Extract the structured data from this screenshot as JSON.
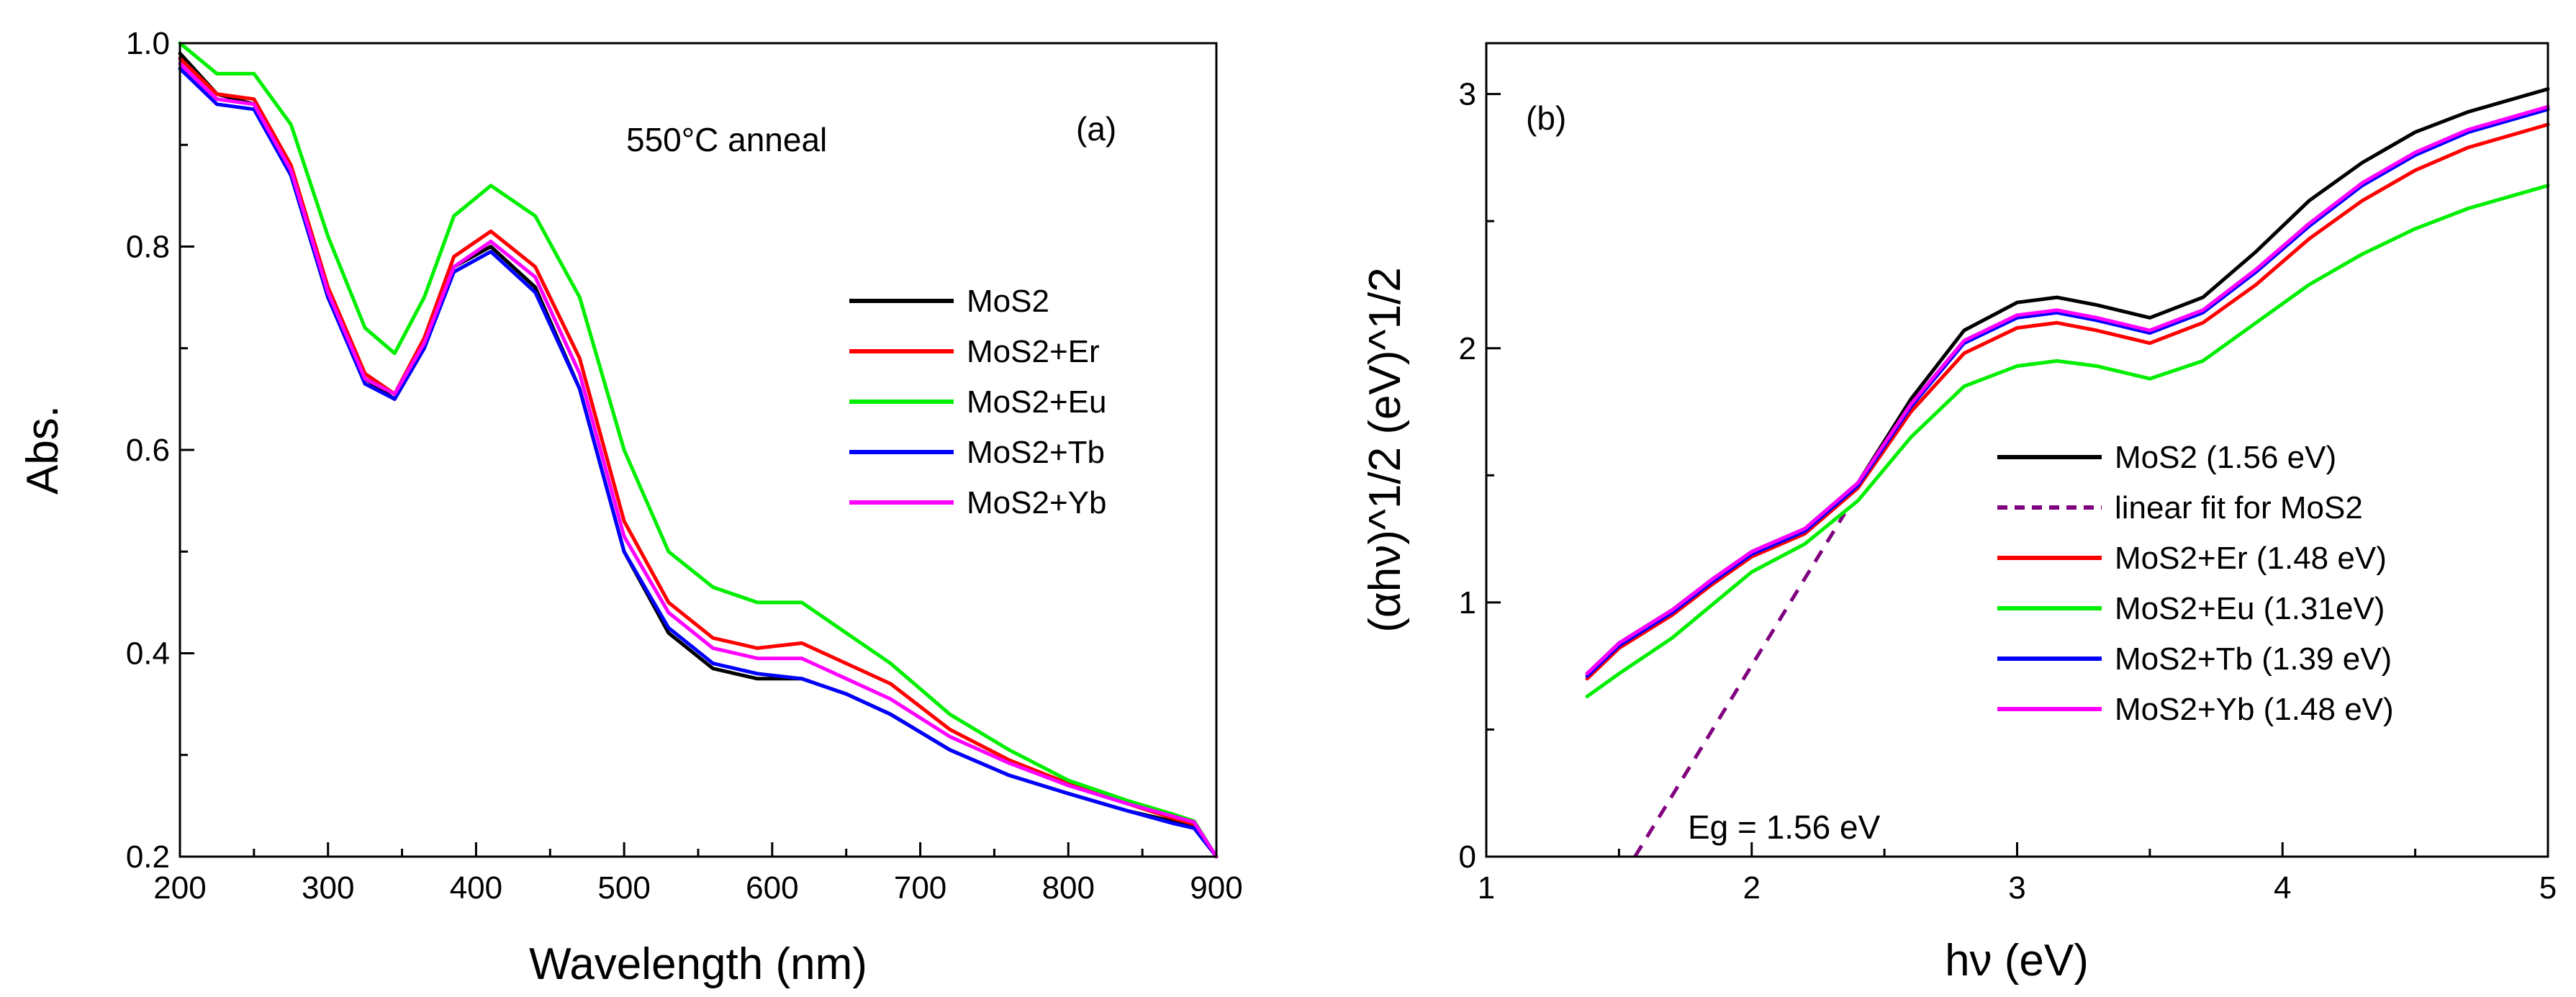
{
  "chart_data": [
    {
      "type": "line",
      "panel_label": "(a)",
      "annotation": "550°C anneal",
      "xlabel": "Wavelength (nm)",
      "ylabel": "Abs.",
      "xlim": [
        200,
        900
      ],
      "ylim": [
        0.2,
        1.0
      ],
      "xticks": [
        200,
        300,
        400,
        500,
        600,
        700,
        800,
        900
      ],
      "xtick_labels": [
        "200",
        "300",
        "400",
        "500",
        "600",
        "700",
        "800",
        "900"
      ],
      "yticks": [
        0.2,
        0.4,
        0.6,
        0.8,
        1.0
      ],
      "ytick_labels": [
        "0.2",
        "0.4",
        "0.6",
        "0.8",
        "1.0"
      ],
      "legend_position": "center-right",
      "x": [
        200,
        225,
        250,
        275,
        300,
        325,
        345,
        365,
        385,
        410,
        440,
        470,
        500,
        530,
        560,
        590,
        620,
        650,
        680,
        720,
        760,
        800,
        840,
        870,
        885,
        900
      ],
      "series": [
        {
          "name": "MoS2",
          "color": "#000000",
          "values": [
            0.99,
            0.95,
            0.94,
            0.87,
            0.75,
            0.67,
            0.65,
            0.7,
            0.78,
            0.8,
            0.76,
            0.66,
            0.5,
            0.42,
            0.385,
            0.375,
            0.375,
            0.36,
            0.34,
            0.305,
            0.28,
            0.262,
            0.245,
            0.235,
            0.23,
            0.2
          ]
        },
        {
          "name": "MoS2+Er",
          "color": "#ff0000",
          "values": [
            0.985,
            0.95,
            0.945,
            0.88,
            0.76,
            0.675,
            0.655,
            0.71,
            0.79,
            0.815,
            0.78,
            0.69,
            0.53,
            0.45,
            0.415,
            0.405,
            0.41,
            0.39,
            0.37,
            0.325,
            0.295,
            0.272,
            0.252,
            0.238,
            0.232,
            0.2
          ]
        },
        {
          "name": "MoS2+Eu",
          "color": "#00ee00",
          "values": [
            1.0,
            0.97,
            0.97,
            0.92,
            0.81,
            0.72,
            0.695,
            0.75,
            0.83,
            0.86,
            0.83,
            0.75,
            0.6,
            0.5,
            0.465,
            0.45,
            0.45,
            0.42,
            0.39,
            0.34,
            0.305,
            0.275,
            0.255,
            0.242,
            0.235,
            0.2
          ]
        },
        {
          "name": "MoS2+Tb",
          "color": "#0000ff",
          "values": [
            0.975,
            0.94,
            0.935,
            0.87,
            0.75,
            0.665,
            0.65,
            0.7,
            0.775,
            0.795,
            0.755,
            0.66,
            0.5,
            0.425,
            0.39,
            0.38,
            0.375,
            0.36,
            0.34,
            0.305,
            0.28,
            0.262,
            0.245,
            0.233,
            0.228,
            0.2
          ]
        },
        {
          "name": "MoS2+Yb",
          "color": "#ff00ff",
          "values": [
            0.98,
            0.945,
            0.94,
            0.875,
            0.755,
            0.67,
            0.655,
            0.705,
            0.78,
            0.805,
            0.77,
            0.675,
            0.515,
            0.44,
            0.405,
            0.395,
            0.395,
            0.375,
            0.355,
            0.318,
            0.292,
            0.27,
            0.252,
            0.24,
            0.234,
            0.2
          ]
        }
      ]
    },
    {
      "type": "line",
      "panel_label": "(b)",
      "xlabel": "hν (eV)",
      "ylabel": "(αhν)^1/2 (eV)^1/2",
      "xlim": [
        1,
        5
      ],
      "ylim": [
        0,
        3.2
      ],
      "xticks": [
        1,
        2,
        3,
        4,
        5
      ],
      "xtick_labels": [
        "1",
        "2",
        "3",
        "4",
        "5"
      ],
      "yticks": [
        0,
        1,
        2,
        3
      ],
      "ytick_labels": [
        "0",
        "1",
        "2",
        "3"
      ],
      "legend_position": "center-right",
      "annotation": "Eg = 1.56 eV",
      "fit_line": {
        "name": "linear fit for MoS2",
        "color": "#800080",
        "x": [
          1.56,
          2.35
        ],
        "values": [
          0.0,
          1.35
        ]
      },
      "x": [
        1.38,
        1.5,
        1.7,
        1.85,
        2.0,
        2.2,
        2.4,
        2.6,
        2.8,
        3.0,
        3.15,
        3.3,
        3.5,
        3.7,
        3.9,
        4.1,
        4.3,
        4.5,
        4.7,
        5.0
      ],
      "series": [
        {
          "name": "MoS2",
          "label": "MoS2      (1.56 eV)",
          "color": "#000000",
          "values": [
            0.72,
            0.84,
            0.97,
            1.09,
            1.2,
            1.29,
            1.47,
            1.8,
            2.07,
            2.18,
            2.2,
            2.17,
            2.12,
            2.2,
            2.38,
            2.58,
            2.73,
            2.85,
            2.93,
            3.02
          ]
        },
        {
          "name": "MoS2+Er",
          "label": "MoS2+Er  (1.48 eV)",
          "color": "#ff0000",
          "values": [
            0.7,
            0.82,
            0.95,
            1.07,
            1.18,
            1.27,
            1.45,
            1.75,
            1.98,
            2.08,
            2.1,
            2.07,
            2.02,
            2.1,
            2.25,
            2.43,
            2.58,
            2.7,
            2.79,
            2.88
          ]
        },
        {
          "name": "MoS2+Eu",
          "label": "MoS2+Eu (1.31eV)",
          "color": "#00ee00",
          "values": [
            0.63,
            0.72,
            0.86,
            0.99,
            1.12,
            1.23,
            1.4,
            1.65,
            1.85,
            1.93,
            1.95,
            1.93,
            1.88,
            1.95,
            2.1,
            2.25,
            2.37,
            2.47,
            2.55,
            2.64
          ]
        },
        {
          "name": "MoS2+Tb",
          "label": "MoS2+Tb (1.39 eV)",
          "color": "#0000ff",
          "values": [
            0.71,
            0.83,
            0.96,
            1.08,
            1.19,
            1.28,
            1.46,
            1.77,
            2.02,
            2.12,
            2.14,
            2.11,
            2.06,
            2.14,
            2.3,
            2.48,
            2.64,
            2.76,
            2.85,
            2.94
          ]
        },
        {
          "name": "MoS2+Yb",
          "label": "MoS2+Yb (1.48 eV)",
          "color": "#ff00ff",
          "values": [
            0.72,
            0.84,
            0.97,
            1.09,
            1.2,
            1.29,
            1.47,
            1.78,
            2.03,
            2.13,
            2.15,
            2.12,
            2.07,
            2.15,
            2.31,
            2.49,
            2.65,
            2.77,
            2.86,
            2.95
          ]
        }
      ]
    }
  ]
}
